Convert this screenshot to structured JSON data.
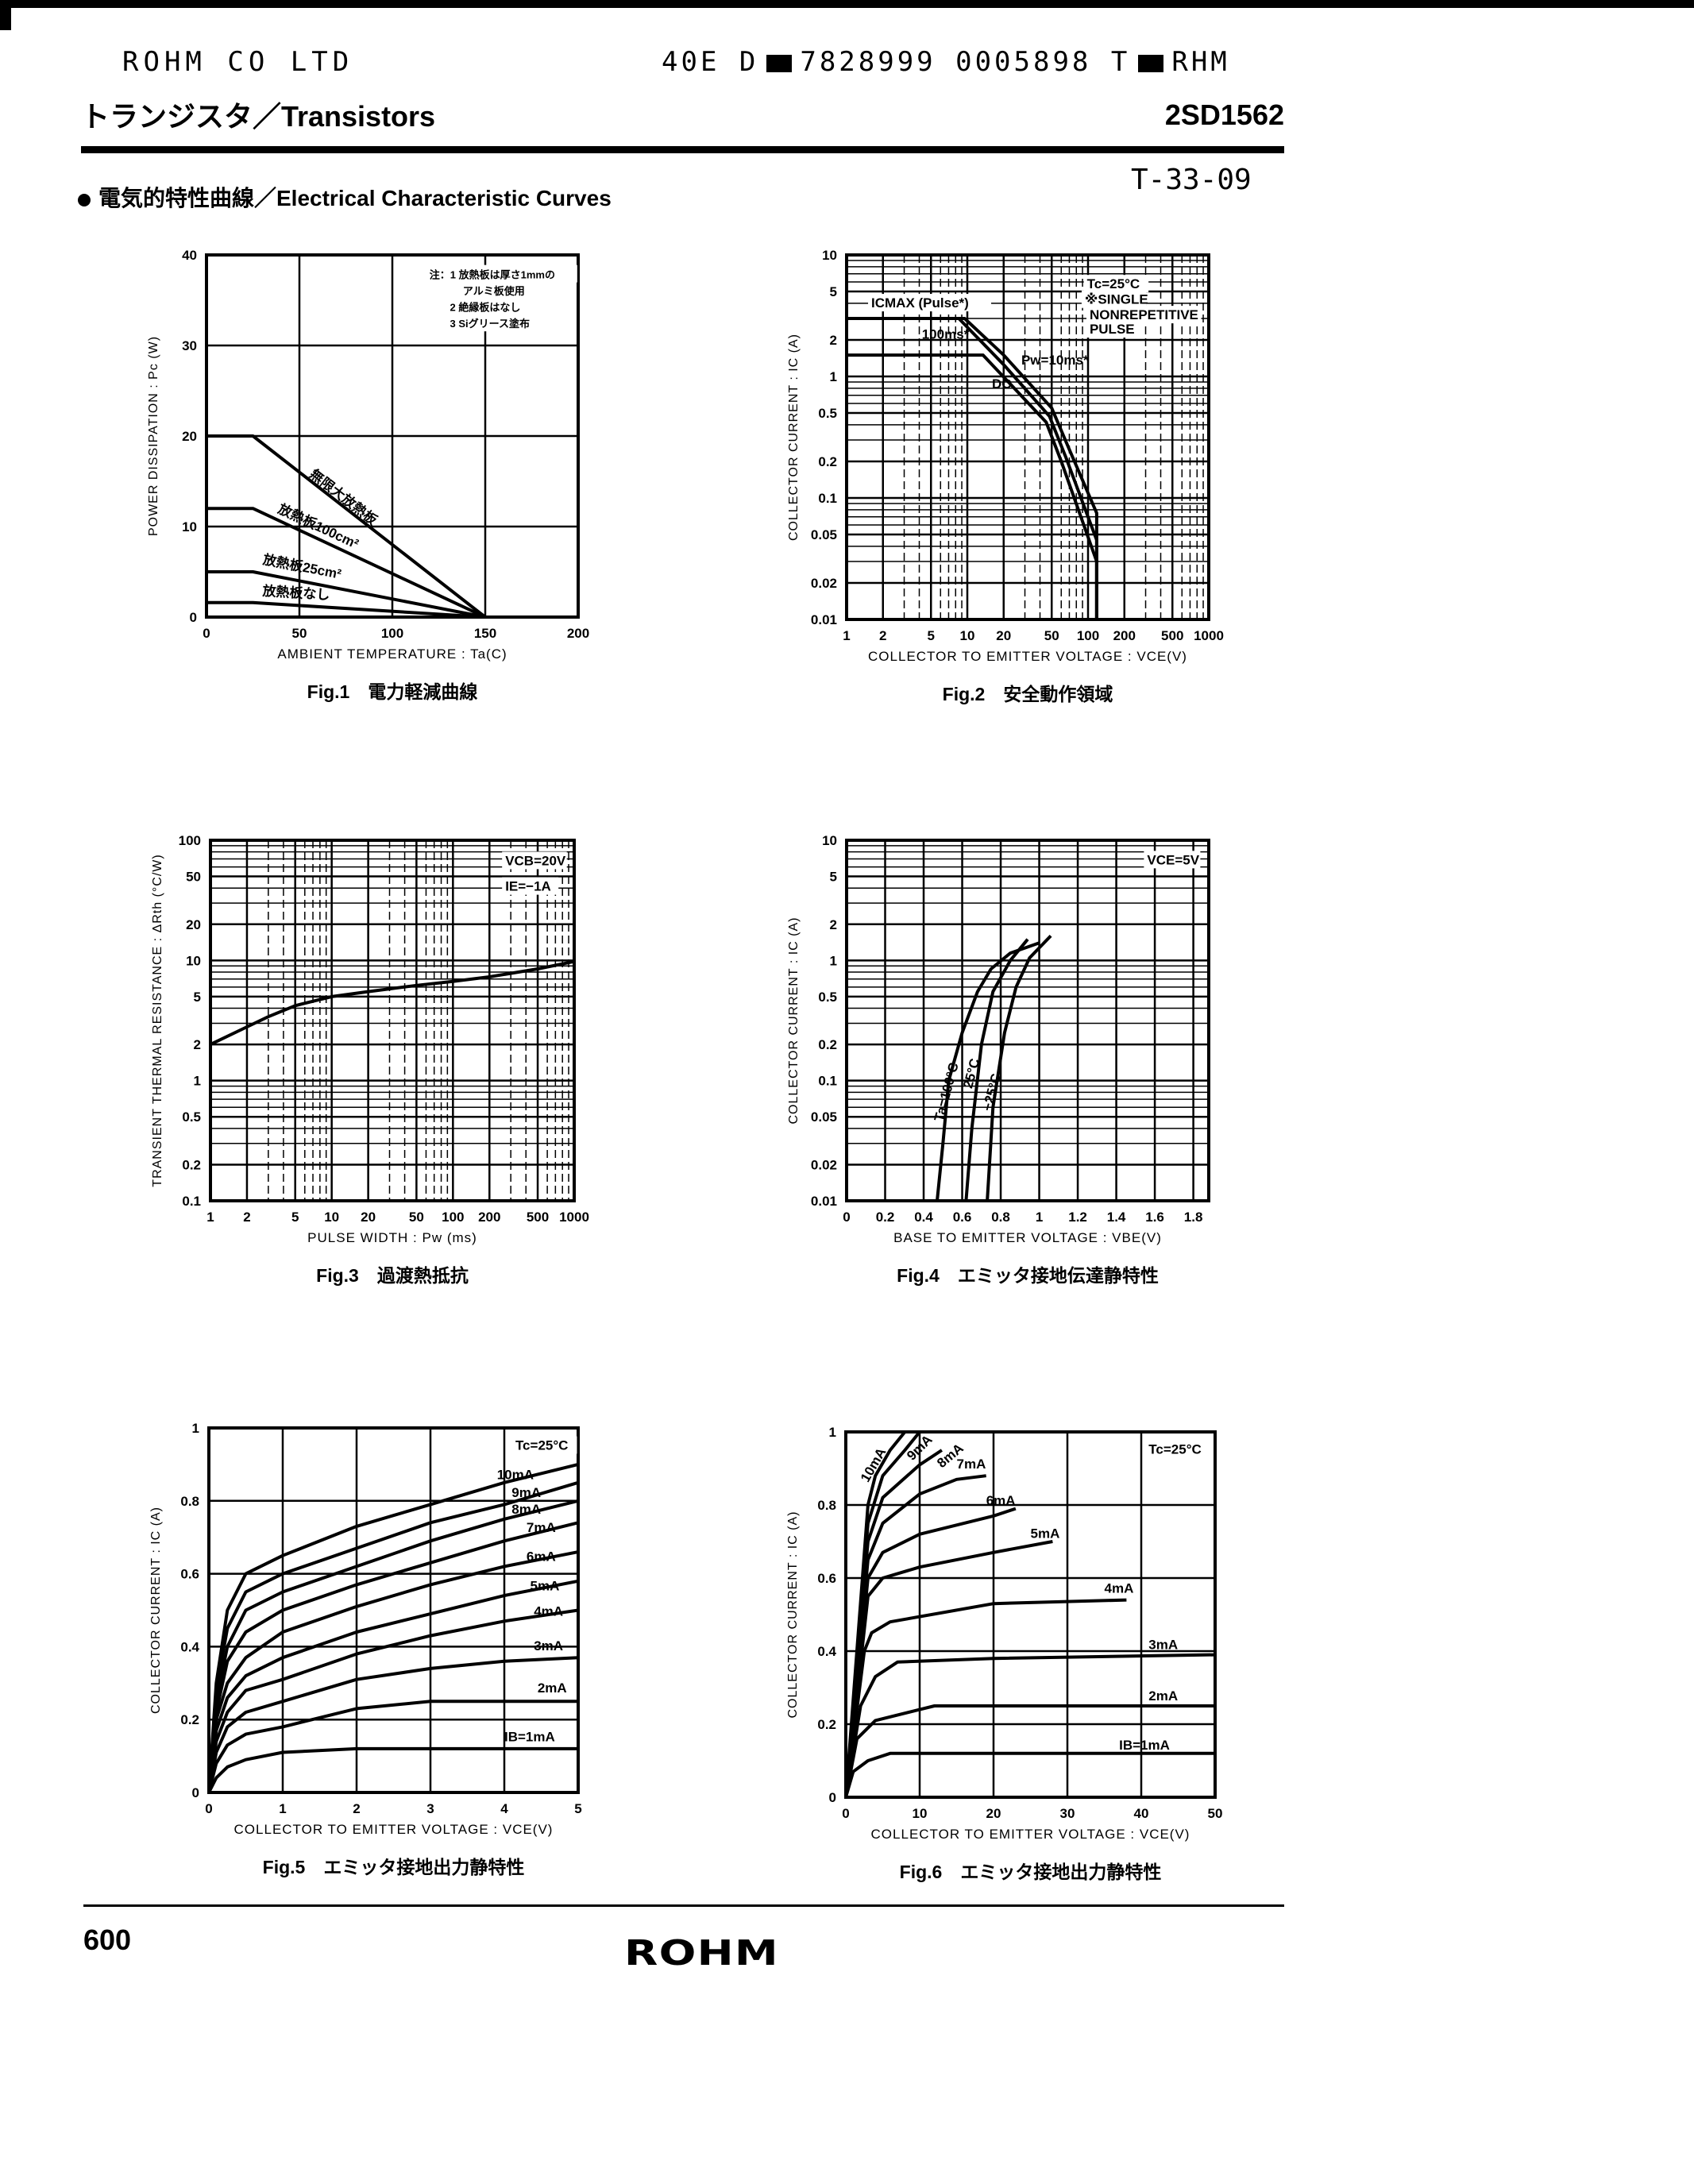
{
  "header": {
    "company": "ROHM CO LTD",
    "code": "40E D",
    "serial": "7828999 0005898 T",
    "code_suffix": "RHM",
    "category": "トランジスタ／Transistors",
    "part_number": "2SD1562",
    "doc_code": "T-33-09",
    "section_title": "電気的特性曲線／Electrical Characteristic Curves"
  },
  "footer": {
    "page_number": "600",
    "logo": "ROHM"
  },
  "chart_data": [
    {
      "type": "line",
      "caption": "Fig.1　電力軽減曲線",
      "xlabel": "AMBIENT TEMPERATURE : Ta(C)",
      "ylabel": "POWER DISSIPATION : Pc (W)",
      "xscale": "linear",
      "yscale": "linear",
      "xlim": [
        0,
        200
      ],
      "ylim": [
        0,
        40
      ],
      "xticks": [
        0,
        50,
        100,
        150,
        200
      ],
      "yticks": [
        0,
        10,
        20,
        30,
        40
      ],
      "grid": true,
      "series": [
        {
          "name": "無限大放熱板",
          "points": [
            [
              0,
              20
            ],
            [
              25,
              20
            ],
            [
              150,
              0
            ]
          ],
          "label_at": [
            55,
            15.6
          ]
        },
        {
          "name": "放熱板100cm²",
          "points": [
            [
              0,
              12
            ],
            [
              25,
              12
            ],
            [
              150,
              0
            ]
          ],
          "label_at": [
            38,
            11.6
          ]
        },
        {
          "name": "放熱板25cm²",
          "points": [
            [
              0,
              5
            ],
            [
              25,
              5
            ],
            [
              150,
              0
            ]
          ],
          "label_at": [
            30,
            5.9
          ]
        },
        {
          "name": "放熱板なし",
          "points": [
            [
              0,
              1.6
            ],
            [
              25,
              1.6
            ],
            [
              150,
              0
            ]
          ],
          "label_at": [
            30,
            2.4
          ]
        }
      ],
      "annotations": [
        {
          "text": "注：1 放熱板は厚さ1mmの",
          "x": 120,
          "y": 37.4
        },
        {
          "text": "アルミ板使用",
          "x": 138,
          "y": 35.6
        },
        {
          "text": "2 絶縁板はなし",
          "x": 131,
          "y": 33.8
        },
        {
          "text": "3 Siグリース塗布",
          "x": 131,
          "y": 32.0
        }
      ]
    },
    {
      "type": "line",
      "caption": "Fig.2　安全動作領域",
      "xlabel": "COLLECTOR TO EMITTER VOLTAGE : VCE(V)",
      "ylabel": "COLLECTOR CURRENT : IC (A)",
      "xscale": "log",
      "yscale": "log",
      "xlim": [
        1,
        1000
      ],
      "ylim": [
        0.01,
        10
      ],
      "xticks": [
        1,
        2,
        5,
        10,
        20,
        50,
        100,
        200,
        500,
        1000
      ],
      "yticks": [
        0.01,
        0.02,
        0.05,
        0.1,
        0.2,
        0.5,
        1,
        2,
        5,
        10
      ],
      "grid": true,
      "series": [
        {
          "name": "Pw=10ms*",
          "points": [
            [
              1,
              3
            ],
            [
              9.5,
              3
            ],
            [
              20,
              1.5
            ],
            [
              50,
              0.55
            ],
            [
              70,
              0.25
            ],
            [
              118,
              0.075
            ],
            [
              118,
              0.01
            ]
          ],
          "label_at": [
            28,
            1.25
          ]
        },
        {
          "name": "100ms*",
          "points": [
            [
              1,
              3
            ],
            [
              8.5,
              3
            ],
            [
              20,
              1.25
            ],
            [
              48,
              0.47
            ],
            [
              65,
              0.22
            ],
            [
              118,
              0.045
            ],
            [
              118,
              0.01
            ]
          ],
          "label_at": [
            4.2,
            2.05
          ]
        },
        {
          "name": "DC",
          "points": [
            [
              1,
              1.5
            ],
            [
              13.5,
              1.5
            ],
            [
              45,
              0.42
            ],
            [
              60,
              0.2
            ],
            [
              118,
              0.03
            ],
            [
              118,
              0.01
            ]
          ],
          "label_at": [
            16,
            0.8
          ]
        }
      ],
      "annotations": [
        {
          "text": "ICMAX (Pulse*)",
          "x": 1.6,
          "y": 3.7
        },
        {
          "text": "Tc=25°C",
          "x": 98,
          "y": 5.3
        },
        {
          "text": "※SINGLE",
          "x": 94,
          "y": 3.95
        },
        {
          "text": "NONREPETITIVE",
          "x": 103,
          "y": 2.95
        },
        {
          "text": "PULSE",
          "x": 103,
          "y": 2.25
        }
      ]
    },
    {
      "type": "line",
      "caption": "Fig.3　過渡熱抵抗",
      "xlabel": "PULSE WIDTH : Pw (ms)",
      "ylabel": "TRANSIENT THERMAL RESISTANCE : ΔRth (°C/W)",
      "xscale": "log",
      "yscale": "log",
      "xlim": [
        1,
        1000
      ],
      "ylim": [
        0.1,
        100
      ],
      "xticks": [
        1,
        2,
        5,
        10,
        20,
        50,
        100,
        200,
        500,
        1000
      ],
      "yticks": [
        0.1,
        0.2,
        0.5,
        1,
        2,
        5,
        10,
        20,
        50,
        100
      ],
      "grid": true,
      "series": [
        {
          "points": [
            [
              1,
              2
            ],
            [
              2,
              2.8
            ],
            [
              3,
              3.4
            ],
            [
              5,
              4.2
            ],
            [
              10,
              5
            ],
            [
              20,
              5.5
            ],
            [
              50,
              6.2
            ],
            [
              100,
              6.7
            ],
            [
              200,
              7.3
            ],
            [
              500,
              8.5
            ],
            [
              1000,
              9.8
            ]
          ]
        }
      ],
      "annotations": [
        {
          "text": "VCB=20V",
          "x": 270,
          "y": 62
        },
        {
          "text": "IE=−1A",
          "x": 270,
          "y": 38
        }
      ]
    },
    {
      "type": "line",
      "caption": "Fig.4　エミッタ接地伝達静特性",
      "xlabel": "BASE TO EMITTER VOLTAGE : VBE(V)",
      "ylabel": "COLLECTOR CURRENT : IC (A)",
      "xscale": "linear",
      "yscale": "log",
      "xlim": [
        0,
        1.88
      ],
      "ylim": [
        0.01,
        10
      ],
      "xticks": [
        0,
        0.2,
        0.4,
        0.6,
        0.8,
        1.0,
        1.2,
        1.4,
        1.6,
        1.8
      ],
      "yticks": [
        0.01,
        0.02,
        0.05,
        0.1,
        0.2,
        0.5,
        1,
        2,
        5,
        10
      ],
      "grid": true,
      "series": [
        {
          "name": "Ta=100°C",
          "points": [
            [
              0.47,
              0.01
            ],
            [
              0.5,
              0.03
            ],
            [
              0.53,
              0.1
            ],
            [
              0.6,
              0.25
            ],
            [
              0.68,
              0.55
            ],
            [
              0.75,
              0.85
            ],
            [
              0.85,
              1.15
            ],
            [
              1.0,
              1.4
            ]
          ],
          "label_at": [
            0.5,
            0.045
          ]
        },
        {
          "name": "25°C",
          "points": [
            [
              0.62,
              0.01
            ],
            [
              0.65,
              0.04
            ],
            [
              0.7,
              0.2
            ],
            [
              0.76,
              0.55
            ],
            [
              0.85,
              1.0
            ],
            [
              0.94,
              1.5
            ]
          ],
          "label_at": [
            0.65,
            0.085
          ]
        },
        {
          "name": "−25°C",
          "points": [
            [
              0.73,
              0.01
            ],
            [
              0.76,
              0.06
            ],
            [
              0.82,
              0.25
            ],
            [
              0.88,
              0.6
            ],
            [
              0.95,
              1.05
            ],
            [
              1.06,
              1.6
            ]
          ],
          "label_at": [
            0.75,
            0.055
          ]
        }
      ],
      "annotations": [
        {
          "text": "VCE=5V",
          "x": 1.56,
          "y": 6.3
        }
      ]
    },
    {
      "type": "line",
      "caption": "Fig.5　エミッタ接地出力静特性",
      "xlabel": "COLLECTOR TO EMITTER VOLTAGE : VCE(V)",
      "ylabel": "COLLECTOR CURRENT : IC (A)",
      "xscale": "linear",
      "yscale": "linear",
      "xlim": [
        0,
        5
      ],
      "ylim": [
        0,
        1.0
      ],
      "xticks": [
        0,
        1,
        2,
        3,
        4,
        5
      ],
      "yticks": [
        0,
        0.2,
        0.4,
        0.6,
        0.8,
        1.0
      ],
      "grid": true,
      "x": [
        0,
        0.1,
        0.25,
        0.5,
        1,
        2,
        3,
        4,
        5
      ],
      "series": [
        {
          "name": "10mA",
          "values": [
            0,
            0.3,
            0.5,
            0.6,
            0.65,
            0.73,
            0.79,
            0.85,
            0.9
          ],
          "label_at": [
            3.9,
            0.86
          ]
        },
        {
          "name": "9mA",
          "values": [
            0,
            0.28,
            0.45,
            0.55,
            0.6,
            0.67,
            0.74,
            0.79,
            0.85
          ],
          "label_at": [
            4.1,
            0.81
          ]
        },
        {
          "name": "8mA",
          "values": [
            0,
            0.25,
            0.4,
            0.5,
            0.55,
            0.62,
            0.69,
            0.75,
            0.8
          ],
          "label_at": [
            4.1,
            0.765
          ]
        },
        {
          "name": "7mA",
          "values": [
            0,
            0.22,
            0.36,
            0.44,
            0.5,
            0.57,
            0.63,
            0.69,
            0.74
          ],
          "label_at": [
            4.3,
            0.715
          ]
        },
        {
          "name": "6mA",
          "values": [
            0,
            0.2,
            0.3,
            0.37,
            0.44,
            0.51,
            0.57,
            0.62,
            0.66
          ],
          "label_at": [
            4.3,
            0.635
          ]
        },
        {
          "name": "5mA",
          "values": [
            0,
            0.17,
            0.26,
            0.32,
            0.37,
            0.44,
            0.49,
            0.54,
            0.58
          ],
          "label_at": [
            4.35,
            0.555
          ]
        },
        {
          "name": "4mA",
          "values": [
            0,
            0.14,
            0.22,
            0.28,
            0.31,
            0.38,
            0.43,
            0.47,
            0.5
          ],
          "label_at": [
            4.4,
            0.485
          ]
        },
        {
          "name": "3mA",
          "values": [
            0,
            0.11,
            0.18,
            0.22,
            0.25,
            0.31,
            0.34,
            0.36,
            0.37
          ],
          "label_at": [
            4.4,
            0.39
          ]
        },
        {
          "name": "2mA",
          "values": [
            0,
            0.08,
            0.13,
            0.16,
            0.18,
            0.23,
            0.25,
            0.25,
            0.25
          ],
          "label_at": [
            4.45,
            0.275
          ]
        },
        {
          "name": "IB=1mA",
          "values": [
            0,
            0.04,
            0.07,
            0.09,
            0.11,
            0.12,
            0.12,
            0.12,
            0.12
          ],
          "label_at": [
            4.0,
            0.14
          ]
        }
      ],
      "annotations": [
        {
          "text": "Tc=25°C",
          "x": 4.15,
          "y": 0.94
        }
      ]
    },
    {
      "type": "line",
      "caption": "Fig.6　エミッタ接地出力静特性",
      "xlabel": "COLLECTOR TO EMITTER VOLTAGE : VCE(V)",
      "ylabel": "COLLECTOR CURRENT : IC (A)",
      "xscale": "linear",
      "yscale": "linear",
      "xlim": [
        0,
        50
      ],
      "ylim": [
        0,
        1.0
      ],
      "xticks": [
        0,
        10,
        20,
        30,
        40,
        50
      ],
      "yticks": [
        0,
        0.2,
        0.4,
        0.6,
        0.8,
        1.0
      ],
      "grid": true,
      "series": [
        {
          "name": "10mA",
          "points": [
            [
              0,
              0
            ],
            [
              3,
              0.8
            ],
            [
              4,
              0.88
            ],
            [
              6,
              0.95
            ],
            [
              8,
              1.0
            ]
          ],
          "label_at": [
            3,
            0.86
          ]
        },
        {
          "name": "9mA",
          "points": [
            [
              0,
              0
            ],
            [
              3,
              0.75
            ],
            [
              5,
              0.88
            ],
            [
              8,
              0.95
            ],
            [
              10,
              1.0
            ]
          ],
          "label_at": [
            9,
            0.92
          ]
        },
        {
          "name": "8mA",
          "points": [
            [
              0,
              0
            ],
            [
              3,
              0.7
            ],
            [
              5,
              0.82
            ],
            [
              10,
              0.91
            ],
            [
              13,
              0.95
            ]
          ],
          "label_at": [
            13,
            0.9
          ]
        },
        {
          "name": "7mA",
          "points": [
            [
              0,
              0
            ],
            [
              3,
              0.65
            ],
            [
              5,
              0.75
            ],
            [
              10,
              0.83
            ],
            [
              15,
              0.87
            ],
            [
              19,
              0.88
            ]
          ],
          "label_at": [
            15,
            0.9
          ]
        },
        {
          "name": "6mA",
          "points": [
            [
              0,
              0
            ],
            [
              3,
              0.6
            ],
            [
              5,
              0.67
            ],
            [
              10,
              0.72
            ],
            [
              20,
              0.77
            ],
            [
              23,
              0.79
            ]
          ],
          "label_at": [
            19,
            0.8
          ]
        },
        {
          "name": "5mA",
          "points": [
            [
              0,
              0
            ],
            [
              3,
              0.55
            ],
            [
              5,
              0.6
            ],
            [
              10,
              0.63
            ],
            [
              20,
              0.67
            ],
            [
              28,
              0.7
            ]
          ],
          "label_at": [
            25,
            0.71
          ]
        },
        {
          "name": "4mA",
          "points": [
            [
              0,
              0
            ],
            [
              2.5,
              0.4
            ],
            [
              3.5,
              0.45
            ],
            [
              6,
              0.48
            ],
            [
              20,
              0.53
            ],
            [
              38,
              0.54
            ]
          ],
          "label_at": [
            35,
            0.56
          ]
        },
        {
          "name": "3mA",
          "points": [
            [
              0,
              0
            ],
            [
              2,
              0.25
            ],
            [
              4,
              0.33
            ],
            [
              7,
              0.37
            ],
            [
              20,
              0.38
            ],
            [
              50,
              0.39
            ]
          ],
          "label_at": [
            41,
            0.405
          ]
        },
        {
          "name": "2mA",
          "points": [
            [
              0,
              0
            ],
            [
              1.5,
              0.16
            ],
            [
              4,
              0.21
            ],
            [
              10,
              0.24
            ],
            [
              12,
              0.25
            ],
            [
              50,
              0.25
            ]
          ],
          "label_at": [
            41,
            0.265
          ]
        },
        {
          "name": "IB=1mA",
          "points": [
            [
              0,
              0
            ],
            [
              1,
              0.07
            ],
            [
              3,
              0.1
            ],
            [
              6,
              0.12
            ],
            [
              50,
              0.12
            ]
          ],
          "label_at": [
            37,
            0.13
          ]
        }
      ],
      "annotations": [
        {
          "text": "Tc=25°C",
          "x": 41,
          "y": 0.94
        }
      ]
    }
  ]
}
